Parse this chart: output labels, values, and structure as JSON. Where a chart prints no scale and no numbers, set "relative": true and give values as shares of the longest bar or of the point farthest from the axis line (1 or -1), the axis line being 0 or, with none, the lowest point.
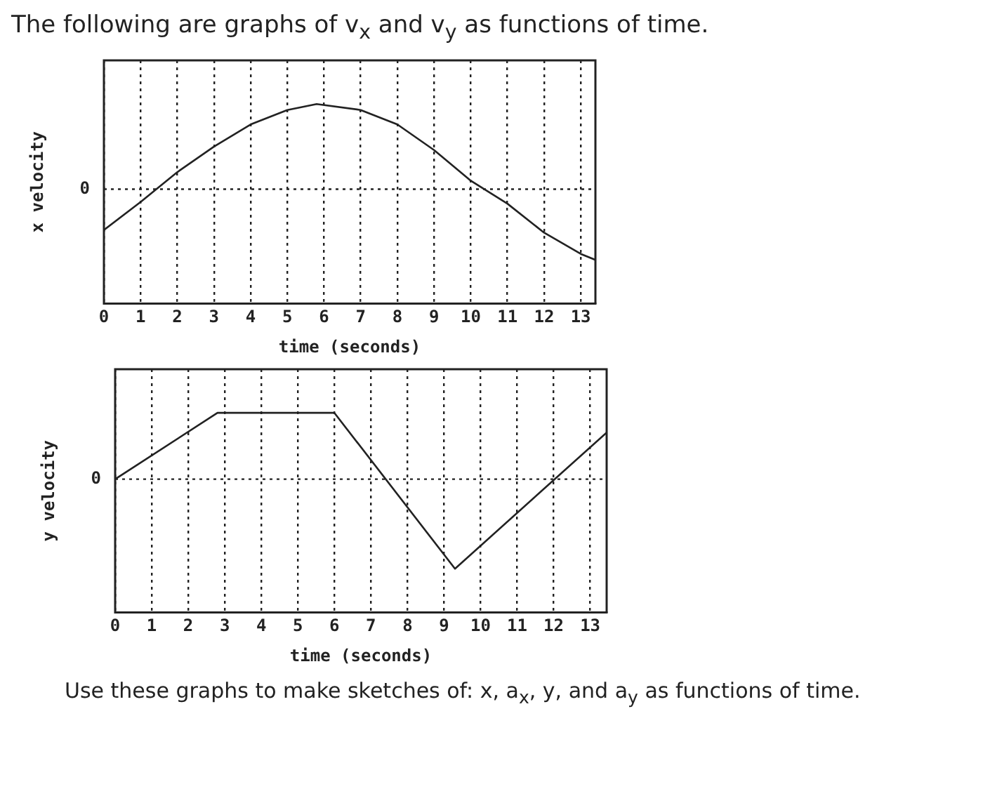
{
  "chart_data": [
    {
      "type": "line",
      "title": "The following are graphs of v$_{x}$ and v$_{y}$ as functions of time.",
      "xlabel": "time (seconds)",
      "ylabel": "x velocity",
      "relative": true,
      "grid": "x",
      "xlim": [
        0,
        13.4
      ],
      "xticks": [
        0,
        1,
        2,
        3,
        4,
        5,
        6,
        7,
        8,
        9,
        10,
        11,
        12,
        13
      ],
      "x": [
        0,
        1,
        2,
        3,
        4,
        5,
        5.8,
        7,
        8,
        9,
        10,
        11,
        12,
        13,
        13.4
      ],
      "series": [
        {
          "color": "#222222",
          "values": [
            -0.48,
            -0.15,
            0.2,
            0.5,
            0.76,
            0.93,
            1,
            0.93,
            0.76,
            0.46,
            0.1,
            -0.17,
            -0.51,
            -0.76,
            -0.83
          ]
        }
      ],
      "ref_lines": [
        {
          "axis": "y",
          "value": 0,
          "label": "0",
          "line_style": "dotted"
        }
      ]
    },
    {
      "type": "line",
      "xlabel": "time (seconds)",
      "ylabel": "y velocity",
      "relative": true,
      "grid": "x",
      "xlim": [
        0,
        13.45
      ],
      "xticks": [
        0,
        1,
        2,
        3,
        4,
        5,
        6,
        7,
        8,
        9,
        10,
        11,
        12,
        13
      ],
      "x": [
        0,
        2.8,
        6,
        9.3,
        13.45
      ],
      "series": [
        {
          "color": "#222222",
          "values": [
            0,
            0.74,
            0.74,
            -1,
            0.52
          ]
        }
      ],
      "ref_lines": [
        {
          "axis": "y",
          "value": 0,
          "label": "0",
          "line_style": "dotted"
        }
      ],
      "annotations": [
        "Use these graphs to make sketches of: x, a$_{x}$, y, and a$_{y}$ as functions of time."
      ]
    }
  ]
}
